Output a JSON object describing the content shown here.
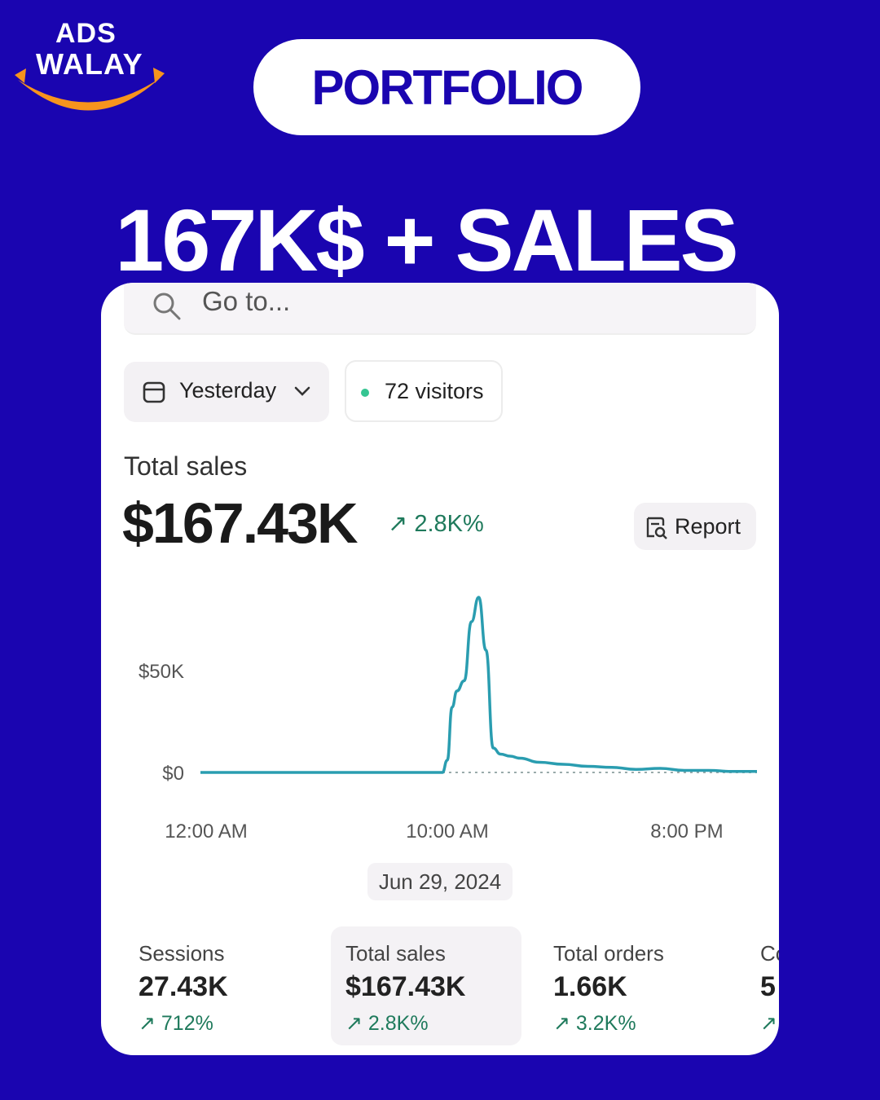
{
  "brand": {
    "line1": "ADS",
    "line2": "WALAY",
    "smile_color": "#f7941d"
  },
  "badge": {
    "label": "PORTFOLIO"
  },
  "headline": "167K$ + SALES",
  "colors": {
    "background": "#1a05b0",
    "line": "#2a9db0",
    "positive": "#1f7a5c",
    "visitor_dot": "#35c592"
  },
  "dashboard": {
    "search": {
      "placeholder": "Go to..."
    },
    "date_filter": {
      "label": "Yesterday",
      "icon": "calendar-icon"
    },
    "visitors": {
      "label": "72 visitors"
    },
    "total_sales": {
      "label": "Total sales",
      "value": "$167.43K",
      "delta": "↗ 2.8K%"
    },
    "report_button": {
      "label": "Report",
      "icon": "report-icon"
    },
    "date": "Jun 29, 2024",
    "metrics": [
      {
        "label": "Sessions",
        "value": "27.43K",
        "delta": "↗ 712%"
      },
      {
        "label": "Total sales",
        "value": "$167.43K",
        "delta": "↗ 2.8K%"
      },
      {
        "label": "Total orders",
        "value": "1.66K",
        "delta": "↗ 3.2K%"
      },
      {
        "label": "Co",
        "value": "5",
        "delta": "↗"
      }
    ]
  },
  "chart_data": {
    "type": "line",
    "x_ticks": [
      "12:00 AM",
      "10:00 AM",
      "8:00 PM"
    ],
    "y_ticks": [
      "$50K",
      "$0"
    ],
    "x": [
      0,
      2,
      4,
      6,
      7,
      8,
      9,
      10,
      10.2,
      10.4,
      10.6,
      10.9,
      11.2,
      11.5,
      11.8,
      12.1,
      12.4,
      12.8,
      13.2,
      14,
      15,
      16,
      17,
      18,
      19,
      20,
      21,
      22,
      23
    ],
    "values": [
      0,
      0,
      0,
      0,
      0,
      0.5,
      0,
      0,
      6000,
      32000,
      40000,
      45000,
      74000,
      86000,
      60000,
      12000,
      9000,
      8000,
      7000,
      5000,
      4000,
      3000,
      2500,
      1500,
      2000,
      1000,
      1000,
      500,
      500
    ],
    "ylim": [
      0,
      95000
    ],
    "xlim": [
      0,
      23
    ],
    "comparison_series": "dotted flat line near $0 from 10:00 AM",
    "grid": false
  }
}
